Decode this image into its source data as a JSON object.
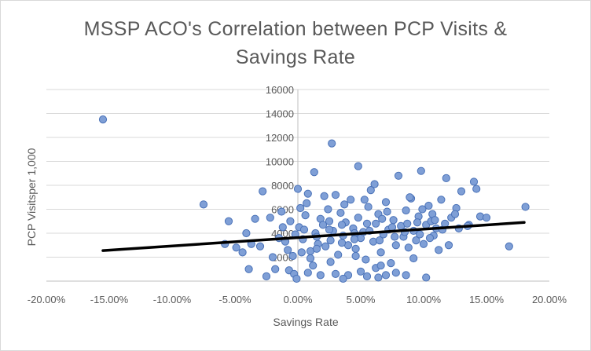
{
  "chart_data": {
    "type": "scatter",
    "title_lines": [
      "MSSP ACO's Correlation between PCP Visits &",
      "Savings Rate"
    ],
    "xlabel": "Savings Rate",
    "ylabel": "PCP Visitsper 1,000",
    "xlim": [
      -0.2,
      0.2
    ],
    "ylim": [
      0,
      16000
    ],
    "x_ticks": [
      -0.2,
      -0.15,
      -0.1,
      -0.05,
      0.0,
      0.05,
      0.1,
      0.15,
      0.2
    ],
    "x_tick_labels": [
      "-20.00%",
      "-15.00%",
      "-10.00%",
      "-5.00%",
      "0.00%",
      "5.00%",
      "10.00%",
      "15.00%",
      "20.00%"
    ],
    "y_ticks": [
      2000,
      4000,
      6000,
      8000,
      10000,
      12000,
      14000,
      16000
    ],
    "y_tick_labels": [
      "2000",
      "4000",
      "6000",
      "8000",
      "10000",
      "12000",
      "14000",
      "16000"
    ],
    "grid": "horizontal",
    "legend": "none",
    "colors": {
      "point_fill": "#7f9fd6",
      "point_stroke": "#4a72b8",
      "trendline": "#000000",
      "grid": "#d9d9d9",
      "text": "#595959"
    },
    "trendline": {
      "type": "linear",
      "x": [
        -0.155,
        0.18
      ],
      "y": [
        2550,
        4900
      ]
    },
    "points": [
      [
        -0.155,
        13500
      ],
      [
        -0.075,
        6400
      ],
      [
        0.027,
        11500
      ],
      [
        0.013,
        9100
      ],
      [
        0.048,
        9600
      ],
      [
        -0.028,
        7500
      ],
      [
        -0.0,
        7700
      ],
      [
        0.002,
        6100
      ],
      [
        -0.034,
        5200
      ],
      [
        -0.055,
        5000
      ],
      [
        -0.022,
        5300
      ],
      [
        -0.041,
        4000
      ],
      [
        -0.037,
        3100
      ],
      [
        -0.049,
        2800
      ],
      [
        -0.044,
        2400
      ],
      [
        -0.039,
        1000
      ],
      [
        -0.02,
        2000
      ],
      [
        -0.018,
        1000
      ],
      [
        -0.007,
        900
      ],
      [
        -0.003,
        600
      ],
      [
        -0.015,
        3600
      ],
      [
        -0.01,
        3300
      ],
      [
        -0.012,
        4500
      ],
      [
        -0.006,
        5000
      ],
      [
        -0.002,
        3900
      ],
      [
        -0.008,
        2600
      ],
      [
        -0.004,
        2100
      ],
      [
        0.001,
        4500
      ],
      [
        0.004,
        3500
      ],
      [
        0.006,
        5500
      ],
      [
        0.008,
        7300
      ],
      [
        0.01,
        2500
      ],
      [
        0.012,
        1300
      ],
      [
        0.014,
        4000
      ],
      [
        0.016,
        3100
      ],
      [
        0.018,
        5200
      ],
      [
        0.02,
        4700
      ],
      [
        0.022,
        2900
      ],
      [
        0.024,
        6000
      ],
      [
        0.026,
        3400
      ],
      [
        0.028,
        4200
      ],
      [
        0.03,
        7200
      ],
      [
        0.032,
        2200
      ],
      [
        0.034,
        5700
      ],
      [
        0.036,
        3800
      ],
      [
        0.038,
        4900
      ],
      [
        0.04,
        3000
      ],
      [
        0.042,
        6800
      ],
      [
        0.044,
        4400
      ],
      [
        0.046,
        2700
      ],
      [
        0.048,
        5300
      ],
      [
        0.05,
        3600
      ],
      [
        0.052,
        4100
      ],
      [
        0.054,
        1800
      ],
      [
        0.056,
        6200
      ],
      [
        0.058,
        7600
      ],
      [
        0.06,
        3300
      ],
      [
        0.062,
        4800
      ],
      [
        0.064,
        5600
      ],
      [
        0.066,
        2400
      ],
      [
        0.068,
        3900
      ],
      [
        0.07,
        6600
      ],
      [
        0.072,
        4300
      ],
      [
        0.074,
        1500
      ],
      [
        0.076,
        5100
      ],
      [
        0.078,
        3000
      ],
      [
        0.08,
        8800
      ],
      [
        0.082,
        4600
      ],
      [
        0.084,
        3700
      ],
      [
        0.086,
        5900
      ],
      [
        0.088,
        2800
      ],
      [
        0.09,
        6900
      ],
      [
        0.092,
        4200
      ],
      [
        0.094,
        3400
      ],
      [
        0.096,
        5400
      ],
      [
        0.098,
        9200
      ],
      [
        0.1,
        3100
      ],
      [
        0.102,
        4700
      ],
      [
        0.104,
        6300
      ],
      [
        0.106,
        5000
      ],
      [
        0.108,
        3800
      ],
      [
        0.11,
        4400
      ],
      [
        0.114,
        6800
      ],
      [
        0.118,
        8600
      ],
      [
        0.12,
        3000
      ],
      [
        0.122,
        5300
      ],
      [
        0.126,
        6100
      ],
      [
        0.13,
        7500
      ],
      [
        0.128,
        4400
      ],
      [
        0.136,
        4700
      ],
      [
        0.14,
        8300
      ],
      [
        0.142,
        7700
      ],
      [
        0.145,
        5400
      ],
      [
        0.15,
        5300
      ],
      [
        0.168,
        2900
      ],
      [
        0.181,
        6200
      ],
      [
        0.055,
        400
      ],
      [
        0.064,
        300
      ],
      [
        0.07,
        500
      ],
      [
        0.086,
        500
      ],
      [
        0.102,
        300
      ],
      [
        0.04,
        500
      ],
      [
        0.03,
        600
      ],
      [
        0.018,
        500
      ],
      [
        0.008,
        700
      ],
      [
        0.05,
        800
      ],
      [
        0.078,
        700
      ],
      [
        -0.001,
        200
      ],
      [
        0.036,
        200
      ],
      [
        0.062,
        1100
      ],
      [
        -0.025,
        400
      ],
      [
        0.01,
        1900
      ],
      [
        0.026,
        1600
      ],
      [
        0.046,
        2100
      ],
      [
        0.066,
        1300
      ],
      [
        0.092,
        1900
      ],
      [
        0.112,
        2600
      ],
      [
        -0.03,
        2900
      ],
      [
        -0.058,
        3100
      ],
      [
        0.003,
        2400
      ],
      [
        0.015,
        3700
      ],
      [
        0.025,
        4300
      ],
      [
        0.035,
        3200
      ],
      [
        0.045,
        4000
      ],
      [
        0.055,
        4800
      ],
      [
        0.065,
        3400
      ],
      [
        0.075,
        4500
      ],
      [
        0.085,
        4100
      ],
      [
        0.095,
        4900
      ],
      [
        0.105,
        3600
      ],
      [
        0.115,
        4300
      ],
      [
        0.125,
        5600
      ],
      [
        0.135,
        4600
      ],
      [
        0.005,
        4300
      ],
      [
        0.015,
        2700
      ],
      [
        0.025,
        5000
      ],
      [
        0.035,
        4700
      ],
      [
        0.045,
        3500
      ],
      [
        0.057,
        4200
      ],
      [
        0.067,
        5200
      ],
      [
        0.077,
        3700
      ],
      [
        0.087,
        4800
      ],
      [
        0.097,
        3900
      ],
      [
        0.107,
        5600
      ],
      [
        0.117,
        4800
      ],
      [
        -0.013,
        5800
      ],
      [
        0.007,
        6500
      ],
      [
        0.021,
        7100
      ],
      [
        0.037,
        6400
      ],
      [
        0.053,
        6800
      ],
      [
        0.061,
        8100
      ],
      [
        0.071,
        5800
      ],
      [
        0.089,
        7000
      ],
      [
        0.099,
        6000
      ],
      [
        0.109,
        5100
      ]
    ]
  }
}
